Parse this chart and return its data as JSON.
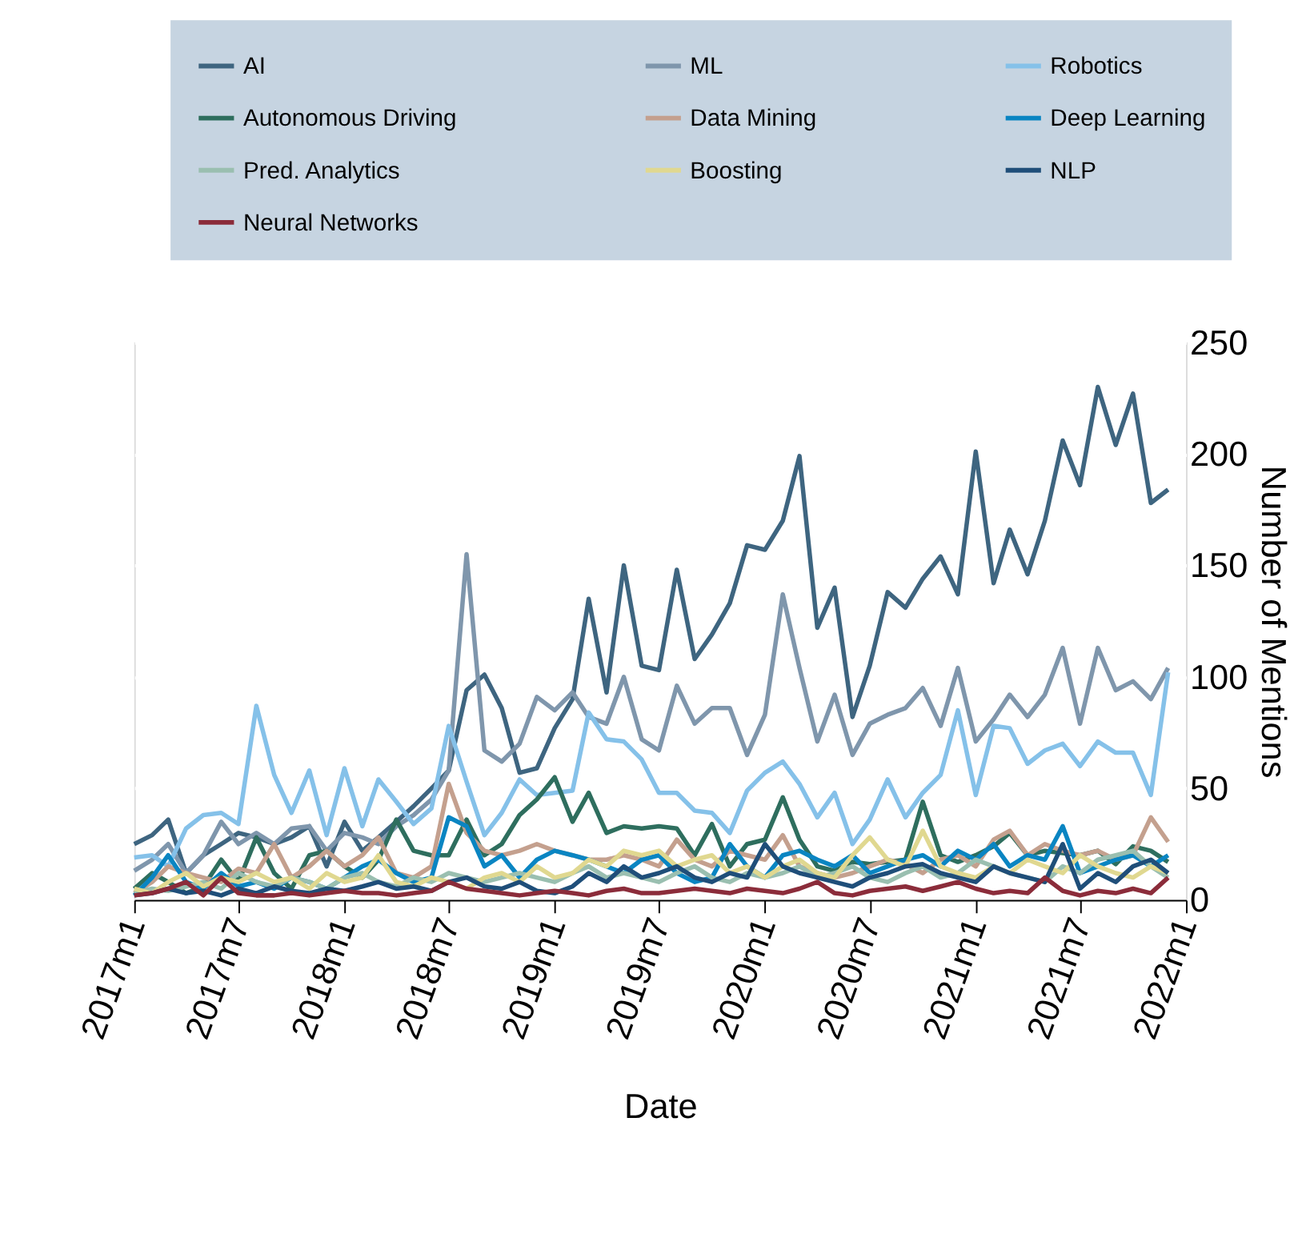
{
  "chart_data": {
    "type": "line",
    "xlabel": "Date",
    "ylabel": "Number of Mentions",
    "x": [
      "2017-01",
      "2017-02",
      "2017-03",
      "2017-04",
      "2017-05",
      "2017-06",
      "2017-07",
      "2017-08",
      "2017-09",
      "2017-10",
      "2017-11",
      "2017-12",
      "2018-01",
      "2018-02",
      "2018-03",
      "2018-04",
      "2018-05",
      "2018-06",
      "2018-07",
      "2018-08",
      "2018-09",
      "2018-10",
      "2018-11",
      "2018-12",
      "2019-01",
      "2019-02",
      "2019-03",
      "2019-04",
      "2019-05",
      "2019-06",
      "2019-07",
      "2019-08",
      "2019-09",
      "2019-10",
      "2019-11",
      "2019-12",
      "2020-01",
      "2020-02",
      "2020-03",
      "2020-04",
      "2020-05",
      "2020-06",
      "2020-07",
      "2020-08",
      "2020-09",
      "2020-10",
      "2020-11",
      "2020-12",
      "2021-01",
      "2021-02",
      "2021-03",
      "2021-04",
      "2021-05",
      "2021-06",
      "2021-07",
      "2021-08",
      "2021-09",
      "2021-10",
      "2021-11",
      "2021-12"
    ],
    "xlim": [
      "2017-01",
      "2022-01"
    ],
    "xticks": [
      {
        "value": "2017-01",
        "label": "2017m1"
      },
      {
        "value": "2017-07",
        "label": "2017m7"
      },
      {
        "value": "2018-01",
        "label": "2018m1"
      },
      {
        "value": "2018-07",
        "label": "2018m7"
      },
      {
        "value": "2019-01",
        "label": "2019m1"
      },
      {
        "value": "2019-07",
        "label": "2019m7"
      },
      {
        "value": "2020-01",
        "label": "2020m1"
      },
      {
        "value": "2020-07",
        "label": "2020m7"
      },
      {
        "value": "2021-01",
        "label": "2021m1"
      },
      {
        "value": "2021-07",
        "label": "2021m7"
      },
      {
        "value": "2022-01",
        "label": "2022m1"
      }
    ],
    "ylim": [
      0,
      250
    ],
    "yticks": [
      0,
      50,
      100,
      150,
      200,
      250
    ],
    "grid": "y",
    "legend": "top",
    "line_style": "solid",
    "marker": "none",
    "series": [
      {
        "name": "AI",
        "color": "#3e6580",
        "values": [
          25,
          29,
          36,
          12,
          20,
          25,
          30,
          28,
          25,
          28,
          33,
          15,
          35,
          22,
          28,
          35,
          42,
          50,
          58,
          94,
          101,
          86,
          57,
          59,
          77,
          90,
          135,
          93,
          150,
          105,
          103,
          148,
          108,
          119,
          133,
          159,
          157,
          170,
          199,
          122,
          140,
          82,
          105,
          138,
          131,
          144,
          154,
          137,
          201,
          142,
          166,
          146,
          170,
          206,
          186,
          230,
          204,
          227,
          178,
          184
        ]
      },
      {
        "name": "ML",
        "color": "#7f96ac",
        "values": [
          13,
          18,
          25,
          12,
          20,
          35,
          25,
          30,
          25,
          32,
          33,
          22,
          30,
          28,
          25,
          33,
          38,
          45,
          58,
          155,
          67,
          62,
          70,
          91,
          85,
          93,
          82,
          79,
          100,
          72,
          67,
          96,
          79,
          86,
          86,
          65,
          83,
          137,
          104,
          71,
          92,
          65,
          79,
          83,
          86,
          95,
          78,
          104,
          71,
          81,
          92,
          82,
          92,
          113,
          79,
          113,
          94,
          98,
          90,
          104
        ]
      },
      {
        "name": "Robotics",
        "color": "#85c1e9",
        "values": [
          19,
          20,
          15,
          32,
          38,
          39,
          34,
          87,
          56,
          39,
          58,
          29,
          59,
          33,
          54,
          44,
          34,
          41,
          78,
          53,
          29,
          39,
          54,
          47,
          48,
          49,
          84,
          72,
          71,
          63,
          48,
          48,
          40,
          39,
          30,
          49,
          57,
          62,
          52,
          37,
          48,
          25,
          36,
          54,
          37,
          48,
          56,
          85,
          47,
          78,
          77,
          61,
          67,
          70,
          60,
          71,
          66,
          66,
          47,
          102
        ]
      },
      {
        "name": "Autonomous Driving",
        "color": "#2e6e5e",
        "values": [
          5,
          12,
          8,
          3,
          6,
          18,
          8,
          28,
          12,
          5,
          20,
          22,
          15,
          10,
          18,
          36,
          22,
          20,
          20,
          36,
          20,
          25,
          38,
          45,
          55,
          35,
          48,
          30,
          33,
          32,
          33,
          32,
          20,
          34,
          15,
          25,
          27,
          46,
          27,
          15,
          13,
          17,
          16,
          17,
          18,
          44,
          20,
          17,
          20,
          24,
          30,
          20,
          22,
          21,
          20,
          22,
          16,
          24,
          22,
          17
        ]
      },
      {
        "name": "Data Mining",
        "color": "#c4a08e",
        "values": [
          3,
          8,
          15,
          12,
          10,
          8,
          14,
          12,
          25,
          10,
          15,
          22,
          15,
          20,
          28,
          12,
          10,
          15,
          52,
          30,
          22,
          20,
          22,
          25,
          22,
          20,
          18,
          18,
          20,
          18,
          15,
          27,
          18,
          15,
          22,
          20,
          18,
          29,
          15,
          12,
          10,
          12,
          15,
          18,
          16,
          12,
          18,
          20,
          15,
          27,
          31,
          20,
          25,
          22,
          20,
          22,
          18,
          20,
          37,
          26
        ]
      },
      {
        "name": "Deep Learning",
        "color": "#0a85c2",
        "values": [
          2,
          10,
          20,
          8,
          5,
          12,
          6,
          8,
          5,
          10,
          8,
          5,
          10,
          15,
          18,
          12,
          8,
          10,
          37,
          33,
          15,
          20,
          10,
          18,
          22,
          20,
          18,
          15,
          12,
          18,
          20,
          12,
          8,
          10,
          25,
          15,
          10,
          20,
          22,
          18,
          15,
          20,
          12,
          15,
          18,
          20,
          15,
          22,
          18,
          25,
          15,
          20,
          18,
          33,
          12,
          15,
          18,
          20,
          15,
          20
        ]
      },
      {
        "name": "Pred. Analytics",
        "color": "#9abfb0",
        "values": [
          3,
          5,
          4,
          6,
          8,
          5,
          12,
          8,
          6,
          10,
          8,
          5,
          10,
          12,
          8,
          6,
          10,
          8,
          12,
          10,
          8,
          10,
          12,
          10,
          8,
          12,
          15,
          10,
          12,
          10,
          8,
          12,
          15,
          10,
          8,
          12,
          10,
          12,
          15,
          10,
          12,
          15,
          10,
          8,
          12,
          15,
          10,
          12,
          18,
          15,
          12,
          10,
          8,
          15,
          12,
          18,
          20,
          22,
          15,
          10
        ]
      },
      {
        "name": "Boosting",
        "color": "#e0d890",
        "values": [
          5,
          3,
          8,
          12,
          6,
          10,
          8,
          12,
          8,
          10,
          5,
          12,
          8,
          10,
          20,
          8,
          6,
          10,
          8,
          5,
          10,
          12,
          8,
          15,
          10,
          12,
          18,
          15,
          22,
          20,
          22,
          15,
          18,
          20,
          12,
          15,
          10,
          15,
          18,
          12,
          10,
          20,
          28,
          18,
          15,
          31,
          15,
          12,
          10,
          15,
          12,
          18,
          15,
          12,
          20,
          15,
          12,
          10,
          15,
          12
        ]
      },
      {
        "name": "NLP",
        "color": "#1f4e79",
        "values": [
          2,
          3,
          5,
          3,
          4,
          2,
          5,
          3,
          6,
          4,
          3,
          5,
          4,
          6,
          8,
          5,
          6,
          4,
          8,
          10,
          6,
          5,
          8,
          4,
          3,
          6,
          12,
          8,
          15,
          10,
          12,
          15,
          10,
          8,
          12,
          10,
          25,
          15,
          12,
          10,
          8,
          6,
          10,
          12,
          15,
          16,
          12,
          10,
          8,
          15,
          12,
          10,
          8,
          25,
          5,
          12,
          8,
          15,
          18,
          12
        ]
      },
      {
        "name": "Neural Networks",
        "color": "#8b2c3a",
        "values": [
          2,
          3,
          5,
          8,
          2,
          10,
          3,
          2,
          2,
          3,
          2,
          3,
          4,
          3,
          3,
          2,
          3,
          4,
          8,
          5,
          4,
          3,
          2,
          3,
          4,
          3,
          2,
          4,
          5,
          3,
          3,
          4,
          5,
          4,
          3,
          5,
          4,
          3,
          5,
          8,
          3,
          2,
          4,
          5,
          6,
          4,
          6,
          8,
          5,
          3,
          4,
          3,
          10,
          4,
          2,
          4,
          3,
          5,
          3,
          10
        ]
      }
    ]
  }
}
